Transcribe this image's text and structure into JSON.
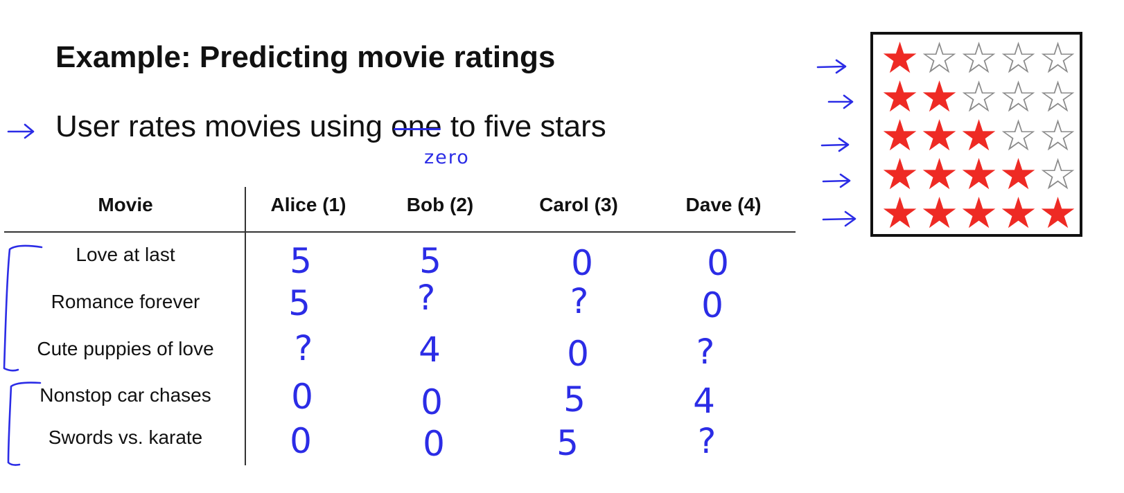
{
  "title": "Example: Predicting movie ratings",
  "bullet": {
    "before": "User rates movies using ",
    "struck": "one",
    "after": " to five stars",
    "annotation": "zero"
  },
  "table": {
    "headers": [
      "Movie",
      "Alice (1)",
      "Bob (2)",
      "Carol (3)",
      "Dave (4)"
    ],
    "rows": [
      {
        "movie": "Love at last",
        "ratings": [
          "5",
          "5",
          "0",
          "0"
        ]
      },
      {
        "movie": "Romance forever",
        "ratings": [
          "5",
          "?",
          "?",
          "0"
        ]
      },
      {
        "movie": "Cute puppies of love",
        "ratings": [
          "?",
          "4",
          "0",
          "?"
        ]
      },
      {
        "movie": "Nonstop car chases",
        "ratings": [
          "0",
          "0",
          "5",
          "4"
        ]
      },
      {
        "movie": "Swords vs. karate",
        "ratings": [
          "0",
          "0",
          "5",
          "?"
        ]
      }
    ]
  },
  "star_scale": {
    "max_stars": 5,
    "levels": [
      1,
      2,
      3,
      4,
      5
    ]
  },
  "colors": {
    "ink": "#2b2ce6",
    "star_filled": "#ee2a24",
    "star_empty": "#8a8a8a",
    "text": "#111111"
  }
}
